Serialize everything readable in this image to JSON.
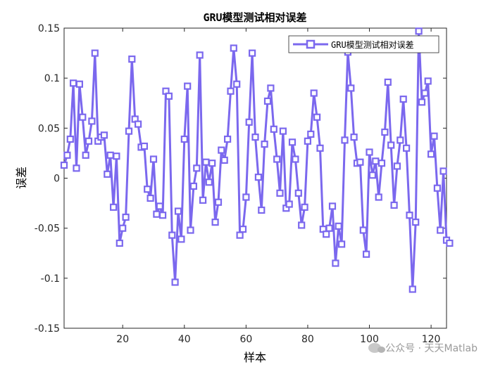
{
  "chart_data": {
    "type": "line",
    "title": "GRU模型测试相对误差",
    "xlabel": "样本",
    "ylabel": "误差",
    "xlim": [
      1,
      125
    ],
    "ylim": [
      -0.15,
      0.15
    ],
    "xticks": [
      20,
      40,
      60,
      80,
      100,
      120
    ],
    "xtick_labels": [
      "20",
      "40",
      "60",
      "80",
      "100",
      "120"
    ],
    "yticks": [
      -0.15,
      -0.1,
      -0.05,
      0,
      0.05,
      0.1,
      0.15
    ],
    "ytick_labels": [
      "-0.15",
      "-0.1",
      "-0.05",
      "0",
      "0.05",
      "0.1",
      "0.15"
    ],
    "grid": false,
    "legend_position": "top-right",
    "series": [
      {
        "name": "GRU模型测试相对误差",
        "color": "#7b68ee",
        "marker": "square",
        "values": [
          0.013,
          0.023,
          0.039,
          0.095,
          0.01,
          0.094,
          0.061,
          0.023,
          0.037,
          0.057,
          0.125,
          0.037,
          0.041,
          0.043,
          0.004,
          0.023,
          -0.029,
          0.022,
          -0.065,
          -0.05,
          -0.039,
          0.047,
          0.119,
          0.059,
          0.054,
          0.031,
          0.032,
          -0.011,
          -0.02,
          0.019,
          -0.036,
          -0.028,
          -0.037,
          0.087,
          0.082,
          -0.057,
          -0.104,
          -0.033,
          -0.061,
          0.039,
          0.092,
          -0.052,
          -0.008,
          0.01,
          0.123,
          -0.022,
          0.016,
          -0.004,
          0.015,
          -0.044,
          -0.024,
          0.028,
          0.018,
          0.039,
          0.087,
          0.13,
          0.094,
          -0.057,
          -0.051,
          -0.019,
          0.056,
          0.125,
          0.041,
          0.001,
          -0.032,
          0.034,
          0.077,
          0.09,
          0.049,
          0.019,
          -0.015,
          0.047,
          -0.03,
          -0.026,
          0.036,
          0.019,
          -0.015,
          -0.047,
          -0.029,
          0.037,
          0.044,
          0.085,
          0.061,
          0.03,
          -0.051,
          -0.056,
          -0.05,
          -0.028,
          -0.085,
          -0.048,
          -0.066,
          0.038,
          0.126,
          0.09,
          0.041,
          0.015,
          0.016,
          -0.052,
          -0.076,
          0.026,
          0.003,
          0.017,
          -0.019,
          0.015,
          0.046,
          0.096,
          0.033,
          -0.027,
          0.012,
          0.038,
          0.079,
          0.03,
          -0.037,
          -0.111,
          -0.044,
          0.147,
          0.076,
          0.085,
          0.097,
          0.024,
          0.042,
          -0.01,
          -0.052,
          0.007,
          -0.062,
          -0.065
        ]
      }
    ]
  },
  "watermark": {
    "text": "公众号 · 天天Matlab",
    "icon": "wechat-icon"
  }
}
